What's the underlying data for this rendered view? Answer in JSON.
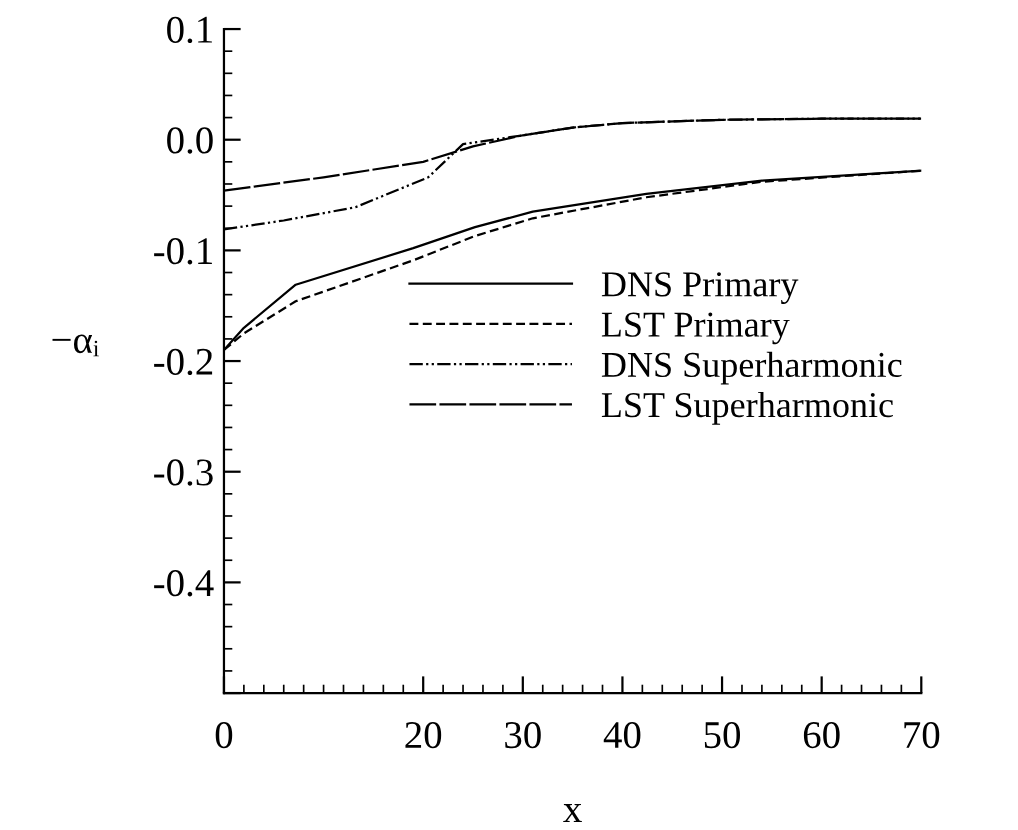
{
  "chart_data": {
    "type": "line",
    "xlabel": "x",
    "ylabel": "−αᵢ",
    "xlim": [
      0,
      70
    ],
    "xticks": [
      0,
      20,
      30,
      40,
      50,
      60,
      70
    ],
    "ylim": [
      -0.5,
      0.1
    ],
    "yticks": [
      0.1,
      {
        "value": 0,
        "label": "0.0"
      },
      -0.1,
      -0.2,
      -0.3,
      -0.4,
      {
        "value": -0.5,
        "label": null
      }
    ],
    "grid": false,
    "legend": "center right",
    "marker": "none",
    "series": [
      {
        "name": "DNS Primary",
        "color": "#000000",
        "line_style": "solid",
        "x": [
          0,
          2,
          7.2,
          19,
          25.2,
          31,
          42.4,
          54,
          70
        ],
        "values": [
          -0.19,
          -0.17,
          -0.131,
          -0.098,
          -0.079,
          -0.065,
          -0.049,
          -0.037,
          -0.028
        ]
      },
      {
        "name": "LST Primary",
        "color": "#000000",
        "line_style": "dashed",
        "x": [
          0,
          2,
          7.2,
          19,
          25.2,
          31,
          42.4,
          54,
          70
        ],
        "values": [
          -0.19,
          -0.175,
          -0.146,
          -0.109,
          -0.087,
          -0.071,
          -0.052,
          -0.038,
          -0.028
        ]
      },
      {
        "name": "DNS Superharmonic",
        "color": "#000000",
        "line_style": "dashdot",
        "x": [
          0,
          6,
          13.2,
          20.5,
          24,
          30,
          35,
          40,
          50,
          60,
          70
        ],
        "values": [
          -0.081,
          -0.073,
          -0.061,
          -0.034,
          -0.004,
          0.004,
          0.011,
          0.015,
          0.018,
          0.019,
          0.019
        ]
      },
      {
        "name": "LST Superharmonic",
        "color": "#000000",
        "line_style": "longdash",
        "x": [
          0,
          10,
          20,
          25,
          30,
          35,
          40,
          50,
          60,
          70
        ],
        "values": [
          -0.046,
          -0.034,
          -0.02,
          -0.006,
          0.004,
          0.011,
          0.015,
          0.018,
          0.019,
          0.019
        ]
      }
    ]
  }
}
